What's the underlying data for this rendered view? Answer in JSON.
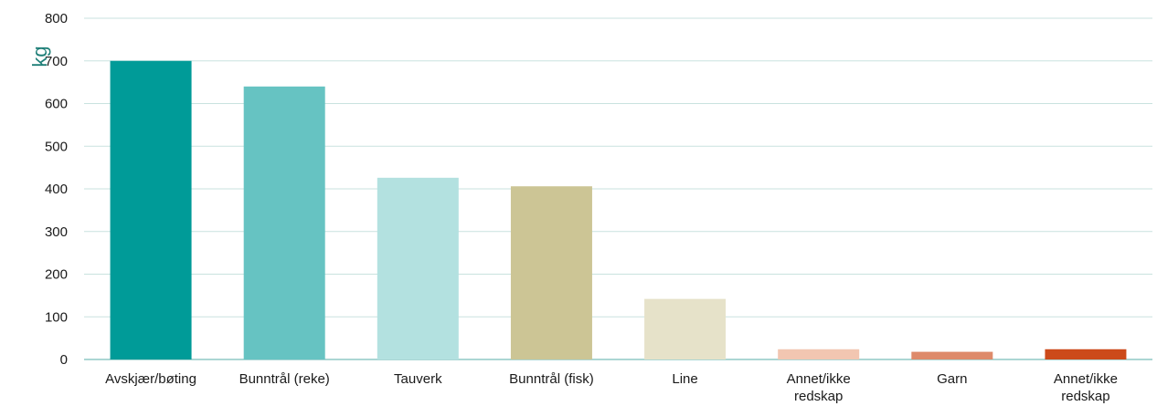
{
  "chart_data": {
    "type": "bar",
    "title": "",
    "xlabel": "",
    "ylabel": "kg",
    "ylim": [
      0,
      800
    ],
    "yticks": [
      0,
      100,
      200,
      300,
      400,
      500,
      600,
      700,
      800
    ],
    "grid": true,
    "legend": "none",
    "categories": [
      "Avskjær/bøting",
      "Bunntrål (reke)",
      "Tauverk",
      "Bunntrål (fisk)",
      "Line",
      "Annet/ikke redskap",
      "Garn",
      "Annet/ikke redskap"
    ],
    "values": [
      700,
      640,
      426,
      406,
      142,
      24,
      18,
      24
    ],
    "colors": [
      "#009b98",
      "#66c3c2",
      "#b3e1e0",
      "#ccc595",
      "#e6e2c9",
      "#f2c6b1",
      "#de8a6a",
      "#cc4a1a"
    ]
  }
}
